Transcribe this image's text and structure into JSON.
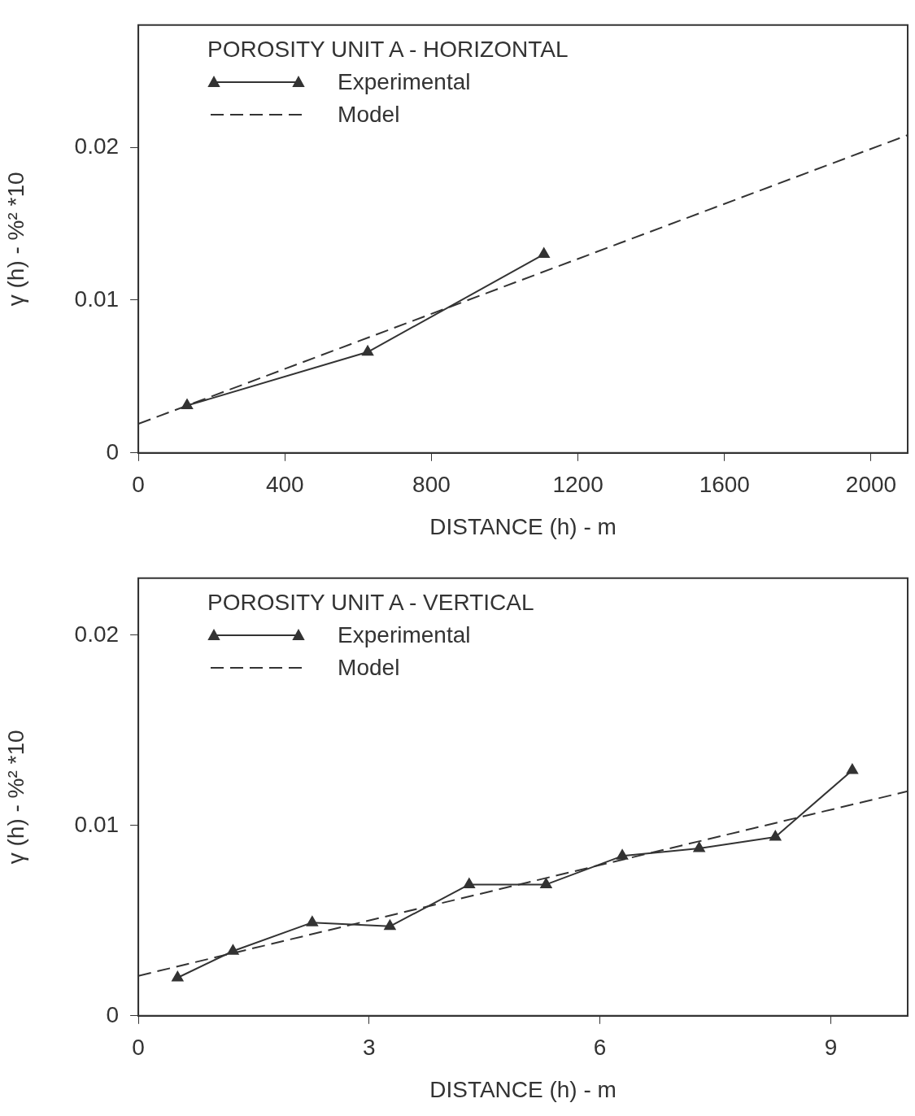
{
  "chart_data": [
    {
      "type": "line",
      "title": "POROSITY UNIT A - HORIZONTAL",
      "xlabel": "DISTANCE (h) - m",
      "ylabel": "γ (h) - %² *10",
      "xlim": [
        0,
        2100
      ],
      "xticks": [
        0,
        400,
        800,
        1200,
        1600,
        2000
      ],
      "ylim": [
        0,
        0.028
      ],
      "yticks": [
        0,
        0.01,
        0.02
      ],
      "grid": false,
      "legend": "top left",
      "series": [
        {
          "name": "Experimental",
          "color": "#333333",
          "marker": "triangle",
          "line_style": "solid",
          "x": [
            133,
            626,
            1107
          ],
          "values": [
            0.0031,
            0.0066,
            0.013
          ]
        },
        {
          "name": "Model",
          "color": "#333333",
          "marker": "none",
          "line_style": "dashed",
          "x": [
            0,
            2100
          ],
          "values": [
            0.0019,
            0.0208
          ]
        }
      ]
    },
    {
      "type": "line",
      "title": "POROSITY UNIT A - VERTICAL",
      "xlabel": "DISTANCE (h) - m",
      "ylabel": "γ (h) - %² *10",
      "xlim": [
        0,
        10
      ],
      "xticks": [
        0,
        3,
        6,
        9
      ],
      "ylim": [
        0,
        0.023
      ],
      "yticks": [
        0,
        0.01,
        0.02
      ],
      "grid": false,
      "legend": "top left",
      "series": [
        {
          "name": "Experimental",
          "color": "#333333",
          "marker": "triangle",
          "line_style": "solid",
          "x": [
            0.51,
            1.23,
            2.26,
            3.27,
            4.3,
            5.3,
            6.29,
            7.29,
            8.28,
            9.28
          ],
          "values": [
            0.002,
            0.0034,
            0.0049,
            0.0047,
            0.0069,
            0.0069,
            0.0084,
            0.0088,
            0.0094,
            0.0129
          ]
        },
        {
          "name": "Model",
          "color": "#333333",
          "marker": "none",
          "line_style": "dashed",
          "x": [
            0,
            10
          ],
          "values": [
            0.0021,
            0.0118
          ]
        }
      ]
    }
  ]
}
